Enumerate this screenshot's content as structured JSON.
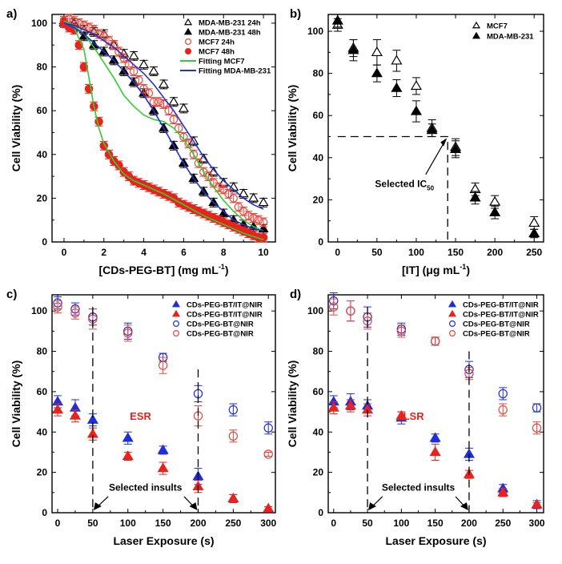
{
  "chart_data": [
    {
      "panel": "a)",
      "type": "scatter",
      "xlabel": "[CDs-PEG-BT]  (mg mL",
      "xlabel_sup": "-1",
      "xlabel_tail": ")",
      "ylabel": "Cell Viability (%)",
      "xlim": [
        -0.6,
        10.6
      ],
      "ylim": [
        0,
        104
      ],
      "xticks": [
        0,
        2,
        4,
        6,
        8,
        10
      ],
      "yticks": [
        0,
        20,
        40,
        60,
        80,
        100
      ],
      "legend": [
        "MDA-MB-231 24h",
        "MDA-MB-231 48h",
        "MCF7 24h",
        "MCF7 48h",
        "Fitting MCF7",
        "Fitting MDA-MB-231"
      ],
      "series": [
        {
          "name": "MDA-MB-231 24h",
          "marker": "triangle-open",
          "color": "#000000",
          "x": [
            0,
            0.5,
            1,
            1.5,
            2,
            2.5,
            3,
            3.5,
            4,
            4.5,
            5,
            5.5,
            6,
            6.5,
            7,
            7.5,
            8,
            8.5,
            9,
            9.5,
            10
          ],
          "y": [
            101,
            100,
            97,
            96,
            95,
            90,
            86,
            85,
            81,
            78,
            72,
            64,
            61,
            46,
            38,
            32,
            27,
            25,
            22,
            20,
            18
          ]
        },
        {
          "name": "MDA-MB-231 48h",
          "marker": "triangle-filled",
          "color": "#000000",
          "x": [
            0,
            0.5,
            1,
            1.5,
            2,
            2.5,
            3,
            3.5,
            4,
            4.5,
            5,
            5.5,
            6,
            6.5,
            7,
            7.5,
            8,
            8.5,
            9,
            9.5,
            10
          ],
          "y": [
            100,
            98,
            94,
            90,
            87,
            83,
            78,
            73,
            68,
            60,
            52,
            44,
            36,
            29,
            23,
            18,
            13,
            10,
            8,
            7,
            6
          ]
        },
        {
          "name": "MCF7 24h",
          "marker": "circle-open",
          "color": "#e8463c",
          "x": [
            0,
            0.25,
            0.5,
            0.75,
            1,
            1.25,
            1.5,
            1.75,
            2,
            2.25,
            2.5,
            2.75,
            3,
            3.25,
            3.5,
            3.75,
            4,
            4.25,
            4.5,
            4.75,
            5,
            5.25,
            5.5,
            5.75,
            6,
            6.25,
            6.5,
            6.75,
            7,
            7.25,
            7.5,
            7.75,
            8,
            8.25,
            8.5,
            8.75,
            9,
            9.25,
            9.5,
            9.75,
            10
          ],
          "y": [
            101,
            102,
            101,
            100,
            99,
            98,
            97,
            95,
            94,
            92,
            90,
            87,
            84,
            81,
            78,
            74,
            70,
            68,
            64,
            64,
            63,
            60,
            56,
            52,
            48,
            45,
            40,
            36,
            32,
            30,
            27,
            25,
            24,
            22,
            20,
            16,
            14,
            12,
            11,
            10,
            9
          ]
        },
        {
          "name": "MCF7 48h",
          "marker": "circle-filled",
          "color": "#e8231c",
          "x": [
            0,
            0.25,
            0.5,
            0.75,
            1,
            1.25,
            1.5,
            1.75,
            2,
            2.25,
            2.5,
            2.75,
            3,
            3.25,
            3.5,
            3.75,
            4,
            4.25,
            4.5,
            4.75,
            5,
            5.25,
            5.5,
            5.75,
            6,
            6.25,
            6.5,
            6.75,
            7,
            7.25,
            7.5,
            7.75,
            8,
            8.25,
            8.5,
            8.75,
            9,
            9.25,
            9.5,
            9.75,
            10
          ],
          "y": [
            100,
            98,
            97,
            90,
            80,
            70,
            62,
            55,
            44,
            40,
            37,
            35,
            32,
            30,
            28,
            27,
            26,
            25,
            24,
            23,
            22,
            21,
            20,
            18,
            17,
            16,
            15,
            14,
            13,
            12,
            11,
            10,
            9,
            8,
            7,
            6,
            5,
            4,
            3,
            2,
            2
          ]
        },
        {
          "name": "Fitting MCF7",
          "type": "line",
          "color": "#33cc33",
          "x": [
            0,
            0.5,
            1,
            1.5,
            2,
            2.5,
            3,
            3.5,
            4,
            4.5,
            5,
            5.5,
            6,
            6.5,
            7,
            7.5,
            8,
            8.5,
            9,
            9.5,
            10
          ],
          "y": [
            101,
            99,
            95,
            89,
            82,
            75,
            67,
            62,
            58,
            56,
            55,
            52,
            47,
            40,
            32,
            25,
            19,
            14,
            10,
            7,
            5
          ]
        },
        {
          "name": "Fitting MCF7",
          "type": "line",
          "color": "#33cc33",
          "x": [
            0,
            0.5,
            1,
            1.25,
            1.5,
            1.75,
            2,
            2.5,
            3,
            3.5,
            4,
            5,
            6,
            7,
            8,
            9,
            10
          ],
          "y": [
            100,
            98,
            88,
            75,
            62,
            52,
            45,
            37,
            31,
            28,
            26,
            22,
            17,
            12,
            8,
            4,
            1
          ]
        },
        {
          "name": "Fitting MDA-MB-231",
          "type": "line",
          "color": "#2233cc",
          "x": [
            0,
            0.5,
            1,
            1.5,
            2,
            2.5,
            3,
            3.5,
            4,
            4.5,
            5,
            5.5,
            6,
            6.5,
            7,
            7.5,
            8,
            8.5,
            9,
            9.5,
            10
          ],
          "y": [
            100,
            99,
            97,
            95,
            92,
            89,
            85,
            81,
            77,
            72,
            66,
            60,
            53,
            46,
            39,
            33,
            28,
            24,
            20,
            17,
            15
          ]
        },
        {
          "name": "Fitting MDA-MB-231",
          "type": "line",
          "color": "#2233cc",
          "x": [
            0,
            0.5,
            1,
            1.5,
            2,
            2.5,
            3,
            3.5,
            4,
            4.5,
            5,
            5.5,
            6,
            6.5,
            7,
            7.5,
            8,
            8.5,
            9,
            9.5,
            10
          ],
          "y": [
            100,
            98,
            95,
            91,
            87,
            83,
            78,
            73,
            67,
            60,
            52,
            44,
            36,
            29,
            23,
            18,
            14,
            10,
            8,
            6,
            5
          ]
        }
      ]
    },
    {
      "panel": "b)",
      "type": "scatter",
      "xlabel": "[IT]  (μg mL",
      "xlabel_sup": "-1",
      "xlabel_tail": ")",
      "ylabel": "Cell Viability (%)",
      "xlim": [
        -12,
        262
      ],
      "ylim": [
        0,
        108
      ],
      "xticks": [
        0,
        50,
        100,
        150,
        200,
        250
      ],
      "yticks": [
        0,
        20,
        40,
        60,
        80,
        100
      ],
      "legend": [
        "MCF7",
        "MDA-MB-231"
      ],
      "annotation": {
        "text": "Selected IC",
        "sub": "50",
        "ic50_x": 140,
        "ic50_y": 50
      },
      "series": [
        {
          "name": "MCF7",
          "marker": "triangle-open",
          "color": "#000000",
          "x": [
            0,
            20,
            50,
            75,
            100,
            120,
            150,
            175,
            200,
            250
          ],
          "y": [
            103,
            92,
            90,
            86,
            74,
            54,
            45,
            25,
            19,
            9
          ],
          "err": [
            3,
            4,
            6,
            5,
            4,
            4,
            4,
            3,
            3,
            3
          ]
        },
        {
          "name": "MDA-MB-231",
          "marker": "triangle-filled",
          "color": "#000000",
          "x": [
            0,
            20,
            50,
            75,
            100,
            120,
            150,
            175,
            200,
            250
          ],
          "y": [
            105,
            91,
            80,
            73,
            62,
            53,
            44,
            21,
            14,
            4
          ],
          "err": [
            3,
            5,
            4,
            4,
            5,
            3,
            4,
            3,
            3,
            2
          ]
        }
      ]
    },
    {
      "panel": "c)",
      "type": "scatter",
      "xlabel": "Laser Exposure (s)",
      "ylabel": "Cell Viability (%)",
      "xlim": [
        -8,
        310
      ],
      "ylim": [
        0,
        108
      ],
      "xticks": [
        0,
        50,
        100,
        150,
        200,
        250,
        300
      ],
      "yticks": [
        0,
        20,
        40,
        60,
        80,
        100
      ],
      "legend": [
        "CDs-PEG-BT/IT@NIR",
        "CDs-PEG-BT/IT@NIR",
        "CDs-PEG-BT@NIR",
        "CDs-PEG-BT@NIR"
      ],
      "label": "ESR",
      "annotation": "Selected insults",
      "insult_times": [
        50,
        200
      ],
      "series": [
        {
          "name": "CDs-PEG-BT/IT@NIR",
          "marker": "triangle-filled",
          "color": "#1f2fd8",
          "x": [
            0,
            25,
            50,
            100,
            150,
            200,
            250,
            300
          ],
          "y": [
            55,
            52,
            46,
            37,
            31,
            18,
            7,
            2
          ],
          "err": [
            3,
            4,
            3,
            3,
            2,
            4,
            2,
            1
          ]
        },
        {
          "name": "CDs-PEG-BT/IT@NIR",
          "marker": "triangle-filled",
          "color": "#e8231c",
          "x": [
            0,
            25,
            50,
            100,
            150,
            200,
            250,
            300
          ],
          "y": [
            51,
            48,
            39,
            28,
            22,
            13,
            7,
            2
          ],
          "err": [
            3,
            3,
            3,
            2,
            3,
            3,
            2,
            1
          ]
        },
        {
          "name": "CDs-PEG-BT@NIR",
          "marker": "circle-open",
          "color": "#1f2fd8",
          "x": [
            0,
            25,
            50,
            100,
            150,
            200,
            250,
            300
          ],
          "y": [
            104,
            101,
            97,
            90,
            77,
            59,
            51,
            42
          ],
          "err": [
            3,
            3,
            4,
            4,
            2,
            4,
            3,
            3
          ]
        },
        {
          "name": "CDs-PEG-BT@NIR",
          "marker": "circle-open",
          "color": "#e8463c",
          "x": [
            0,
            25,
            50,
            100,
            150,
            200,
            250,
            300
          ],
          "y": [
            102,
            99,
            96,
            89,
            73,
            48,
            38,
            29
          ],
          "err": [
            3,
            3,
            5,
            4,
            4,
            5,
            3,
            1
          ]
        }
      ]
    },
    {
      "panel": "d)",
      "type": "scatter",
      "xlabel": "Laser Exposure (s)",
      "ylabel": "Cell Viability (%)",
      "xlim": [
        -8,
        310
      ],
      "ylim": [
        0,
        108
      ],
      "xticks": [
        0,
        50,
        100,
        150,
        200,
        250,
        300
      ],
      "yticks": [
        0,
        20,
        40,
        60,
        80,
        100
      ],
      "legend": [
        "CDs-PEG-BT/IT@NIR",
        "CDs-PEG-BT/IT@NIR",
        "CDs-PEG-BT@NIR",
        "CDs-PEG-BT@NIR"
      ],
      "label": "LSR",
      "annotation": "Selected insults",
      "insult_times": [
        50,
        200
      ],
      "series": [
        {
          "name": "CDs-PEG-BT/IT@NIR",
          "marker": "triangle-filled",
          "color": "#1f2fd8",
          "x": [
            0,
            25,
            50,
            100,
            150,
            200,
            250,
            300
          ],
          "y": [
            55,
            55,
            53,
            47,
            37,
            29,
            12,
            4
          ],
          "err": [
            3,
            4,
            3,
            3,
            2,
            3,
            2,
            2
          ]
        },
        {
          "name": "CDs-PEG-BT/IT@NIR",
          "marker": "triangle-filled",
          "color": "#e8231c",
          "x": [
            0,
            25,
            50,
            100,
            150,
            200,
            250,
            300
          ],
          "y": [
            52,
            53,
            51,
            48,
            30,
            19,
            10,
            4
          ],
          "err": [
            3,
            3,
            3,
            2,
            4,
            2,
            2,
            1
          ]
        },
        {
          "name": "CDs-PEG-BT@NIR",
          "marker": "circle-open",
          "color": "#1f2fd8",
          "x": [
            0,
            25,
            50,
            100,
            150,
            200,
            250,
            300
          ],
          "y": [
            105,
            100,
            97,
            91,
            85,
            71,
            59,
            52
          ],
          "err": [
            4,
            5,
            5,
            3,
            2,
            4,
            3,
            2
          ]
        },
        {
          "name": "CDs-PEG-BT@NIR",
          "marker": "circle-open",
          "color": "#e8463c",
          "x": [
            0,
            25,
            50,
            100,
            150,
            200,
            250,
            300
          ],
          "y": [
            102,
            100,
            95,
            90,
            85,
            69,
            51,
            42
          ],
          "err": [
            4,
            5,
            4,
            3,
            2,
            3,
            3,
            3
          ]
        }
      ]
    }
  ]
}
